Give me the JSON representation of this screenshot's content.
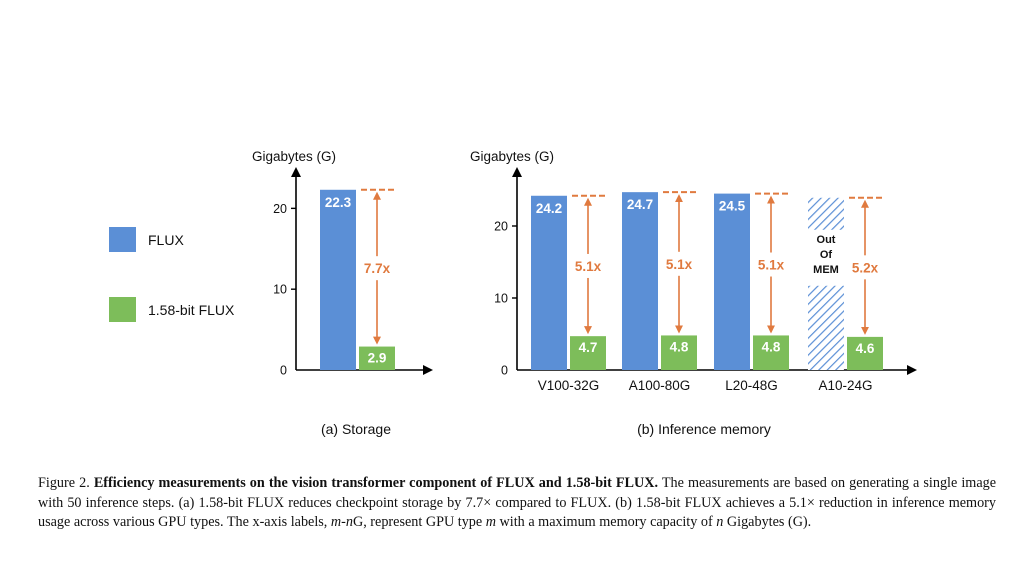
{
  "colors": {
    "flux": "#5B8FD6",
    "flux_158": "#7DBD5A",
    "hatch": "#5B8FD6",
    "ratio": "#E07A3F",
    "axis": "#000000",
    "label_text": "#ffffff"
  },
  "legend": {
    "items": [
      {
        "label": "FLUX",
        "color": "#5B8FD6"
      },
      {
        "label": "1.58-bit FLUX",
        "color": "#7DBD5A"
      }
    ]
  },
  "chart_data": [
    {
      "type": "bar",
      "panel_label": "(a) Storage",
      "ylabel": "Gigabytes (G)",
      "ylim": [
        0,
        24.5
      ],
      "yticks": [
        0,
        10,
        20
      ],
      "categories": [
        ""
      ],
      "series": [
        {
          "name": "FLUX",
          "values": [
            22.3
          ]
        },
        {
          "name": "1.58-bit FLUX",
          "values": [
            2.9
          ]
        }
      ],
      "data_labels": [
        [
          "22.3"
        ],
        [
          "2.9"
        ]
      ],
      "ratio_labels": [
        "7.7x"
      ]
    },
    {
      "type": "bar",
      "panel_label": "(b) Inference memory",
      "ylabel": "Gigabytes (G)",
      "ylim": [
        0,
        27.5
      ],
      "yticks": [
        0,
        10,
        20
      ],
      "categories": [
        "V100-32G",
        "A100-80G",
        "L20-48G",
        "A10-24G"
      ],
      "series": [
        {
          "name": "FLUX",
          "values": [
            24.2,
            24.7,
            24.5,
            null
          ]
        },
        {
          "name": "1.58-bit FLUX",
          "values": [
            4.7,
            4.8,
            4.8,
            4.6
          ]
        }
      ],
      "data_labels": [
        [
          "24.2",
          "24.7",
          "24.5",
          ""
        ],
        [
          "4.7",
          "4.8",
          "4.8",
          "4.6"
        ]
      ],
      "ratio_labels": [
        "5.1x",
        "5.1x",
        "5.1x",
        "5.2x"
      ],
      "oom_note": [
        "Out",
        "Of",
        "MEM"
      ]
    }
  ],
  "caption": {
    "fig_label": "Figure 2.",
    "title": "Efficiency measurements on the vision transformer component of FLUX and 1.58-bit FLUX.",
    "text1": "The measurements are based on generating a single image with 50 inference steps. (a) 1.58-bit FLUX reduces checkpoint storage by 7.7× compared to FLUX. (b) 1.58-bit FLUX achieves a 5.1× reduction in inference memory usage across various GPU types. The x-axis labels,",
    "m1": "m",
    "dash": "-",
    "n1": "n",
    "text2": "G, represent GPU type",
    "m2": "m",
    "text3": "with a maximum memory capacity of",
    "n2": "n",
    "text4": "Gigabytes (G)."
  }
}
